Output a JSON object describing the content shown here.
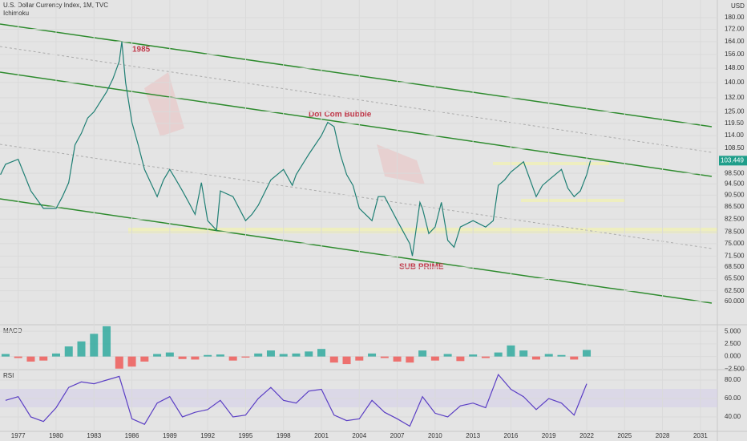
{
  "chart_data": [
    {
      "type": "line",
      "title": "U.S. Dollar Currency Index, 1M, TVC",
      "subtitle": "Ichimoku",
      "unit": "USD",
      "log_scale": true,
      "color": "#1f7f74",
      "xlim": [
        1975.56,
        2032.34
      ],
      "ylim": [
        54.8,
        192.7
      ],
      "xticks": [
        1977,
        1980,
        1983,
        1986,
        1989,
        1992,
        1995,
        1998,
        2001,
        2004,
        2007,
        2010,
        2013,
        2016,
        2019,
        2022,
        2025,
        2028,
        2031
      ],
      "yticks": [
        {
          "value": 180,
          "label": "180.00"
        },
        {
          "value": 172,
          "label": "172.00"
        },
        {
          "value": 164,
          "label": "164.00"
        },
        {
          "value": 156,
          "label": "156.00"
        },
        {
          "value": 148,
          "label": "148.00"
        },
        {
          "value": 140,
          "label": "140.00"
        },
        {
          "value": 132,
          "label": "132.00"
        },
        {
          "value": 125,
          "label": "125.00"
        },
        {
          "value": 119.5,
          "label": "119.50"
        },
        {
          "value": 114,
          "label": "114.00"
        },
        {
          "value": 108.5,
          "label": "108.50"
        },
        {
          "value": 98.5,
          "label": "98.500"
        },
        {
          "value": 94.5,
          "label": "94.500"
        },
        {
          "value": 90.5,
          "label": "90.500"
        },
        {
          "value": 86.5,
          "label": "86.500"
        },
        {
          "value": 82.5,
          "label": "82.500"
        },
        {
          "value": 78.5,
          "label": "78.500"
        },
        {
          "value": 75,
          "label": "75.000"
        },
        {
          "value": 71.5,
          "label": "71.500"
        },
        {
          "value": 68.5,
          "label": "68.500"
        },
        {
          "value": 65.5,
          "label": "65.500"
        },
        {
          "value": 62.5,
          "label": "62.500"
        },
        {
          "value": 60,
          "label": "60.000"
        }
      ],
      "x": [
        1975.6,
        1976,
        1977,
        1978,
        1979,
        1980,
        1980.5,
        1981,
        1981.5,
        1982,
        1982.5,
        1983,
        1983.5,
        1984,
        1984.5,
        1985,
        1985.2,
        1985.5,
        1986,
        1986.5,
        1987,
        1988,
        1988.5,
        1989,
        1989.5,
        1990,
        1990.5,
        1991,
        1991.5,
        1992,
        1992.7,
        1993,
        1994,
        1995,
        1995.5,
        1996,
        1997,
        1998,
        1998.7,
        1999,
        2000,
        2001,
        2001.5,
        2002,
        2002.5,
        2003,
        2003.5,
        2004,
        2005,
        2005.5,
        2006,
        2007,
        2008,
        2008.2,
        2008.8,
        2009,
        2009.5,
        2010,
        2010.5,
        2011,
        2011.5,
        2012,
        2013,
        2014,
        2014.6,
        2015,
        2015.5,
        2016,
        2017,
        2018,
        2018.5,
        2019,
        2020,
        2020.5,
        2021,
        2021.5,
        2022,
        2022.3
      ],
      "values": [
        98,
        102,
        104,
        92,
        86,
        86,
        90,
        95,
        110,
        115,
        122,
        125,
        130,
        135,
        142,
        152,
        164,
        140,
        120,
        110,
        100,
        90,
        96,
        100,
        96,
        92,
        88,
        84,
        95,
        82,
        79,
        92,
        90,
        82,
        84,
        87,
        96,
        100,
        94,
        98,
        106,
        114,
        120,
        118,
        106,
        98,
        94,
        86,
        82,
        90,
        90,
        82,
        75,
        71.5,
        88,
        86,
        78,
        80,
        88,
        76,
        74,
        80,
        82,
        80,
        82,
        94,
        96,
        99,
        103,
        90,
        94,
        96,
        100,
        93,
        90,
        92,
        98,
        103.449
      ],
      "last_price": 103.449,
      "annotations": [
        "1985",
        "Dot Com Bubble",
        "SUB PRIME"
      ]
    },
    {
      "type": "bar",
      "title": "MACD",
      "color": "#26a69a",
      "negative_color": "#ef5350",
      "xlim": [
        1975.56,
        2032.34
      ],
      "ylim": [
        -2.6,
        6.3
      ],
      "yticks": [
        {
          "value": 5,
          "label": "5.000"
        },
        {
          "value": 2.5,
          "label": "2.500"
        },
        {
          "value": 0,
          "label": "0.000"
        },
        {
          "value": -2.5,
          "label": "−2.500"
        }
      ],
      "x": [
        1976,
        1977,
        1978,
        1979,
        1980,
        1981,
        1982,
        1983,
        1984,
        1985,
        1986,
        1987,
        1988,
        1989,
        1990,
        1991,
        1992,
        1993,
        1994,
        1995,
        1996,
        1997,
        1998,
        1999,
        2000,
        2001,
        2002,
        2003,
        2004,
        2005,
        2006,
        2007,
        2008,
        2009,
        2010,
        2011,
        2012,
        2013,
        2014,
        2015,
        2016,
        2017,
        2018,
        2019,
        2020,
        2021,
        2022
      ],
      "values": [
        0.5,
        -0.3,
        -1,
        -0.8,
        0.6,
        2,
        3,
        4.5,
        6,
        -2.4,
        -2,
        -1,
        0.5,
        0.8,
        -0.5,
        -0.6,
        0.3,
        0.4,
        -0.8,
        -0.2,
        0.6,
        1.2,
        0.5,
        0.6,
        1,
        1.5,
        -1.2,
        -1.5,
        -0.8,
        0.6,
        -0.3,
        -1,
        -1.2,
        1.2,
        -0.8,
        0.5,
        -0.9,
        0.4,
        -0.3,
        0.8,
        2.2,
        1.2,
        -0.6,
        0.5,
        0.3,
        -0.6,
        1.3
      ]
    },
    {
      "type": "line",
      "title": "RSI",
      "color": "#5b3fc4",
      "xlim": [
        1975.56,
        2032.34
      ],
      "ylim": [
        22.6,
        90.4
      ],
      "yticks": [
        {
          "value": 80,
          "label": "80.00"
        },
        {
          "value": 60,
          "label": "60.00"
        },
        {
          "value": 40,
          "label": "40.00"
        }
      ],
      "x": [
        1976,
        1977,
        1978,
        1979,
        1980,
        1981,
        1982,
        1983,
        1984,
        1985,
        1986,
        1987,
        1988,
        1989,
        1990,
        1991,
        1992,
        1993,
        1994,
        1995,
        1996,
        1997,
        1998,
        1999,
        2000,
        2001,
        2002,
        2003,
        2004,
        2005,
        2006,
        2007,
        2008,
        2009,
        2010,
        2011,
        2012,
        2013,
        2014,
        2015,
        2016,
        2017,
        2018,
        2019,
        2020,
        2021,
        2022
      ],
      "values": [
        58,
        62,
        40,
        35,
        50,
        72,
        78,
        76,
        80,
        84,
        38,
        32,
        55,
        62,
        40,
        45,
        48,
        58,
        40,
        42,
        60,
        72,
        58,
        55,
        68,
        70,
        42,
        36,
        38,
        58,
        45,
        38,
        30,
        62,
        44,
        40,
        52,
        55,
        50,
        86,
        70,
        62,
        48,
        60,
        55,
        42,
        76
      ]
    }
  ]
}
